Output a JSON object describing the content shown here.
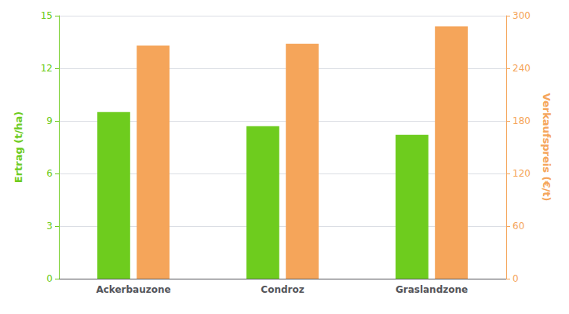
{
  "chart_data": {
    "type": "bar",
    "categories": [
      "Ackerbauzone",
      "Condroz",
      "Graslandzone"
    ],
    "series": [
      {
        "color": "#6ecc1e",
        "values": [
          9.5,
          8.7,
          8.2
        ]
      },
      {
        "color": "#f5a55a",
        "values": [
          266,
          268,
          288
        ],
        "axis": "y2"
      }
    ],
    "ylabel": "Ertrag (t/ha)",
    "y2label": "Verkaufspreis (€/t)",
    "ylim": [
      0,
      15
    ],
    "yticks": [
      0,
      3,
      6,
      9,
      12,
      15
    ],
    "y2lim": [
      0,
      300
    ],
    "y2ticks": [
      0,
      60,
      120,
      180,
      240,
      300
    ],
    "grid": true
  }
}
